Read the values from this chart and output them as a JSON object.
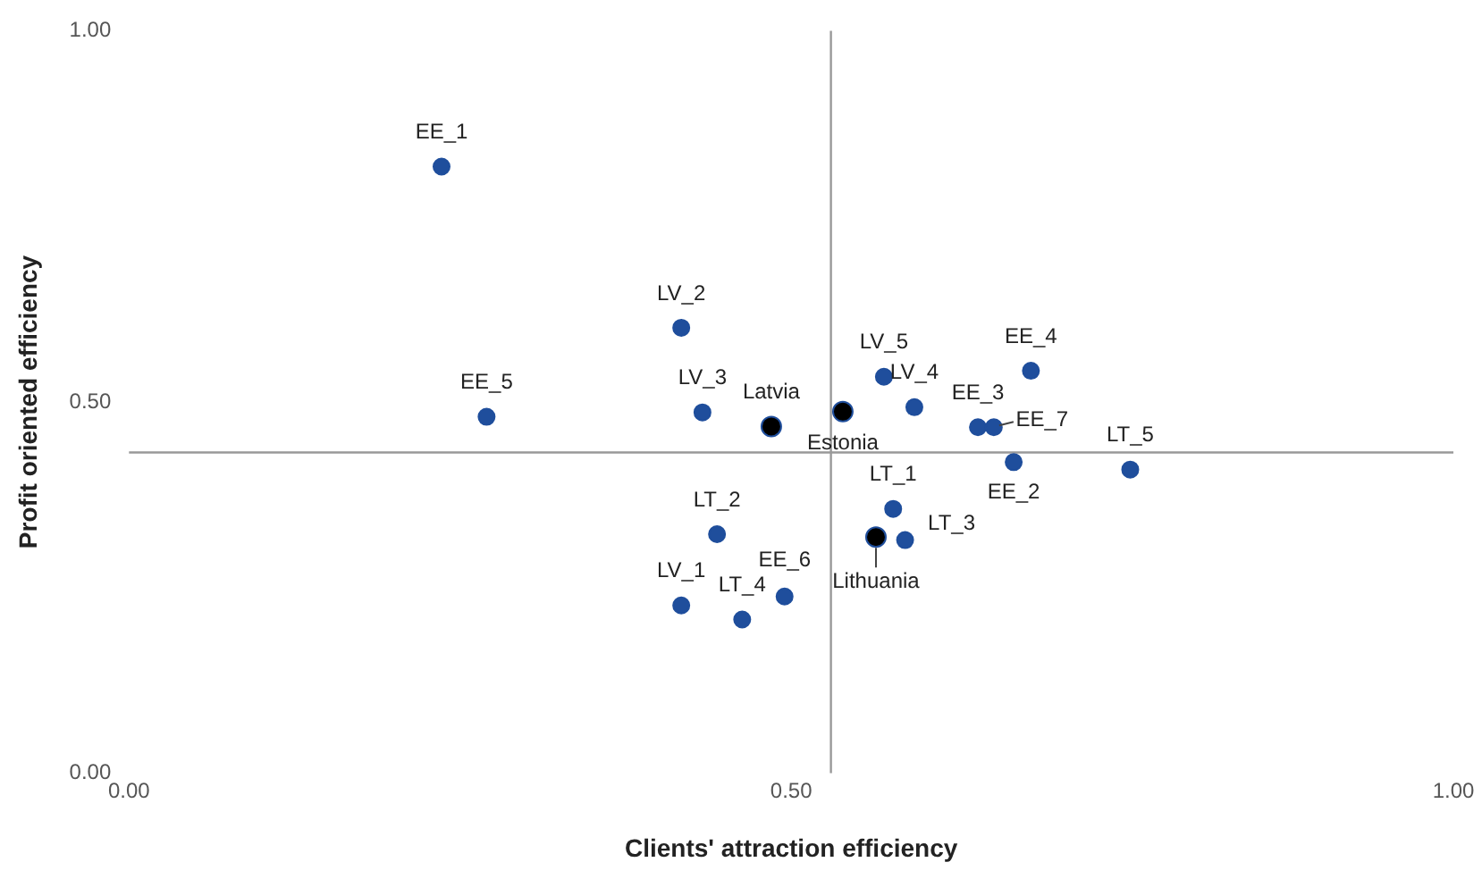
{
  "chart_data": {
    "type": "scatter",
    "xlabel": "Clients' attraction efficiency",
    "ylabel": "Profit oriented efficiency",
    "xlim": [
      0,
      1
    ],
    "xticks": [
      {
        "value": 0,
        "label": "0.00"
      },
      {
        "value": 0.5,
        "label": "0.50"
      },
      {
        "value": 1,
        "label": "1.00"
      }
    ],
    "ylim": [
      0,
      1
    ],
    "yticks": [
      {
        "value": 0,
        "label": "0.00"
      },
      {
        "value": 0.5,
        "label": "0.50"
      },
      {
        "value": 1,
        "label": "1.00"
      }
    ],
    "grid": false,
    "legend": false,
    "marker": "circle",
    "series": [
      {
        "color": "#1f4e9c",
        "x": [
          0.236,
          0.27,
          0.417,
          0.433,
          0.57,
          0.593,
          0.681,
          0.641,
          0.653,
          0.668,
          0.756,
          0.577,
          0.586,
          0.444,
          0.495,
          0.417,
          0.463
        ],
        "values": [
          0.817,
          0.48,
          0.6,
          0.486,
          0.534,
          0.493,
          0.542,
          0.466,
          0.466,
          0.419,
          0.409,
          0.356,
          0.314,
          0.322,
          0.238,
          0.226,
          0.207
        ]
      },
      {
        "color": "#000000",
        "x": [
          0.485,
          0.539,
          0.564
        ],
        "values": [
          0.467,
          0.487,
          0.318
        ]
      }
    ],
    "ref_lines": [
      {
        "axis": "x",
        "value": 0.53,
        "color": "#999999"
      },
      {
        "axis": "y",
        "value": 0.432,
        "color": "#999999"
      }
    ],
    "annotations": [
      {
        "text": "EE_1",
        "x": 0.236,
        "y": 0.817
      },
      {
        "text": "EE_5",
        "x": 0.27,
        "y": 0.48
      },
      {
        "text": "LV_2",
        "x": 0.417,
        "y": 0.6
      },
      {
        "text": "LV_3",
        "x": 0.433,
        "y": 0.486
      },
      {
        "text": "LV_5",
        "x": 0.57,
        "y": 0.534
      },
      {
        "text": "LV_4",
        "x": 0.593,
        "y": 0.493
      },
      {
        "text": "EE_4",
        "x": 0.681,
        "y": 0.542
      },
      {
        "text": "EE_3",
        "x": 0.641,
        "y": 0.466
      },
      {
        "text": "EE_7",
        "x": 0.653,
        "y": 0.466
      },
      {
        "text": "EE_2",
        "x": 0.668,
        "y": 0.419
      },
      {
        "text": "LT_5",
        "x": 0.756,
        "y": 0.409
      },
      {
        "text": "LT_1",
        "x": 0.577,
        "y": 0.356
      },
      {
        "text": "LT_3",
        "x": 0.586,
        "y": 0.314
      },
      {
        "text": "LT_2",
        "x": 0.444,
        "y": 0.322
      },
      {
        "text": "EE_6",
        "x": 0.495,
        "y": 0.238
      },
      {
        "text": "LV_1",
        "x": 0.417,
        "y": 0.226
      },
      {
        "text": "LT_4",
        "x": 0.463,
        "y": 0.207
      },
      {
        "text": "Latvia",
        "x": 0.485,
        "y": 0.467
      },
      {
        "text": "Estonia",
        "x": 0.539,
        "y": 0.487
      },
      {
        "text": "Lithuania",
        "x": 0.564,
        "y": 0.318
      }
    ]
  }
}
